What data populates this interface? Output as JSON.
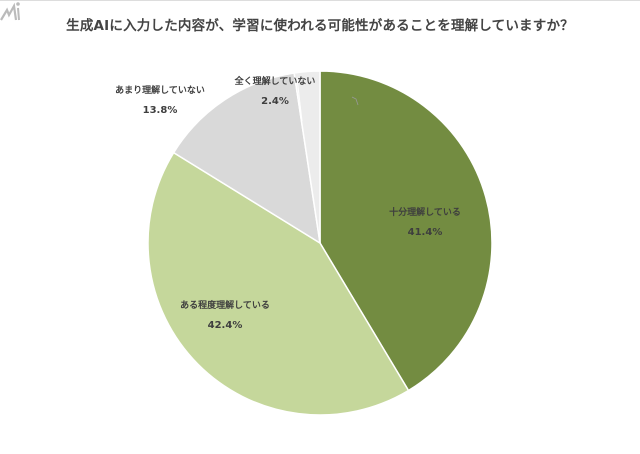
{
  "title": "生成AIに入力した内容が、学習に使われる可能性があることを理解していますか？",
  "chart_data": {
    "type": "pie",
    "title": "生成AIに入力した内容が、学習に使われる可能性があることを理解していますか？",
    "categories": [
      "十分理解している",
      "ある程度理解している",
      "あまり理解していない",
      "全く理解していない"
    ],
    "values": [
      41.4,
      42.4,
      13.8,
      2.4
    ],
    "unit": "%",
    "colors": [
      "#738c41",
      "#c5d79b",
      "#d9d9d9",
      "#ececec"
    ],
    "start_angle": "12 o'clock",
    "direction": "clockwise",
    "labels": [
      {
        "name": "十分理解している",
        "pct": "41.4%"
      },
      {
        "name": "ある程度理解している",
        "pct": "42.4%"
      },
      {
        "name": "あまり理解していない",
        "pct": "13.8%"
      },
      {
        "name": "全く理解していない",
        "pct": "2.4%"
      }
    ]
  }
}
